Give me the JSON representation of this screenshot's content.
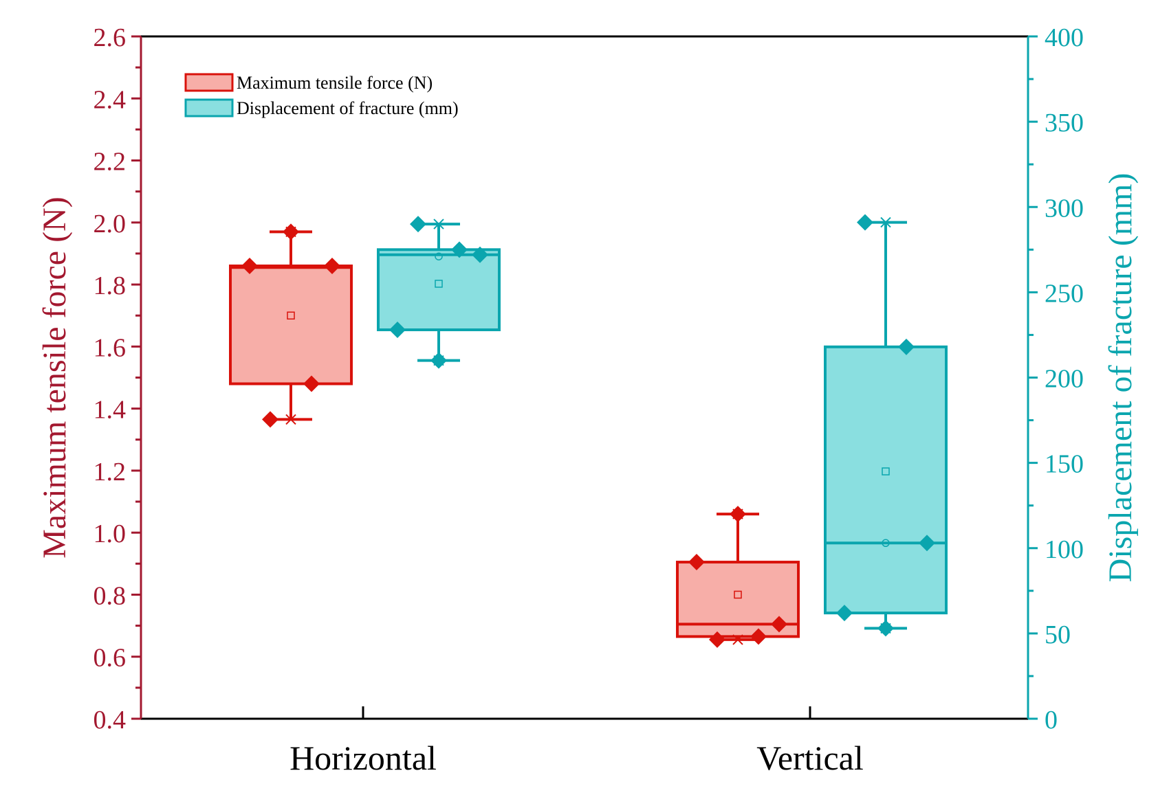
{
  "colors": {
    "red_axis": "#a3182f",
    "red_box_stroke": "#d9120b",
    "red_box_fill": "#f7aea8",
    "teal": "#0aa5ae",
    "teal_box_fill": "#8adfe0",
    "frame": "#000000"
  },
  "chart_data": {
    "type": "box",
    "categories": [
      "Horizontal",
      "Vertical"
    ],
    "y_left": {
      "label": "Maximum tensile force (N)",
      "range": [
        0.4,
        2.6
      ],
      "ticks": [
        "0.4",
        "0.6",
        "0.8",
        "1.0",
        "1.2",
        "1.4",
        "1.6",
        "1.8",
        "2.0",
        "2.2",
        "2.4",
        "2.6"
      ]
    },
    "y_right": {
      "label": "Displacement of fracture (mm)",
      "range": [
        0,
        400
      ],
      "ticks": [
        "0",
        "50",
        "100",
        "150",
        "200",
        "250",
        "300",
        "350",
        "400"
      ]
    },
    "legend": {
      "position": "top-left",
      "entries": [
        "Maximum tensile force (N)",
        "Displacement of fracture (mm)"
      ]
    },
    "series": [
      {
        "name": "Maximum tensile force (N)",
        "axis": "left",
        "boxes": [
          {
            "category": "Horizontal",
            "q1": 1.48,
            "median": 1.855,
            "q3": 1.86,
            "mean": 1.7,
            "whisker_low": 1.365,
            "whisker_high": 1.97,
            "min": 1.365,
            "max": 1.97,
            "points": [
              1.97,
              1.86,
              1.86,
              1.48,
              1.365
            ]
          },
          {
            "category": "Vertical",
            "q1": 0.665,
            "median": 0.705,
            "q3": 0.905,
            "mean": 0.8,
            "whisker_low": 0.655,
            "whisker_high": 1.06,
            "min": 0.655,
            "max": 1.06,
            "points": [
              1.06,
              0.905,
              0.705,
              0.665,
              0.655
            ]
          }
        ]
      },
      {
        "name": "Displacement of fracture (mm)",
        "axis": "right",
        "boxes": [
          {
            "category": "Horizontal",
            "q1": 228,
            "median": 272,
            "q3": 275,
            "mean": 255,
            "whisker_low": 210,
            "whisker_high": 290,
            "min": 210,
            "max": 290,
            "median_marker": 271,
            "points": [
              290,
              275,
              272,
              228,
              210
            ]
          },
          {
            "category": "Vertical",
            "q1": 62,
            "median": 103,
            "q3": 218,
            "mean": 145,
            "whisker_low": 53,
            "whisker_high": 291,
            "min": 53,
            "max": 291,
            "median_marker": 103,
            "points": [
              291,
              218,
              103,
              62,
              53
            ]
          }
        ]
      }
    ]
  }
}
